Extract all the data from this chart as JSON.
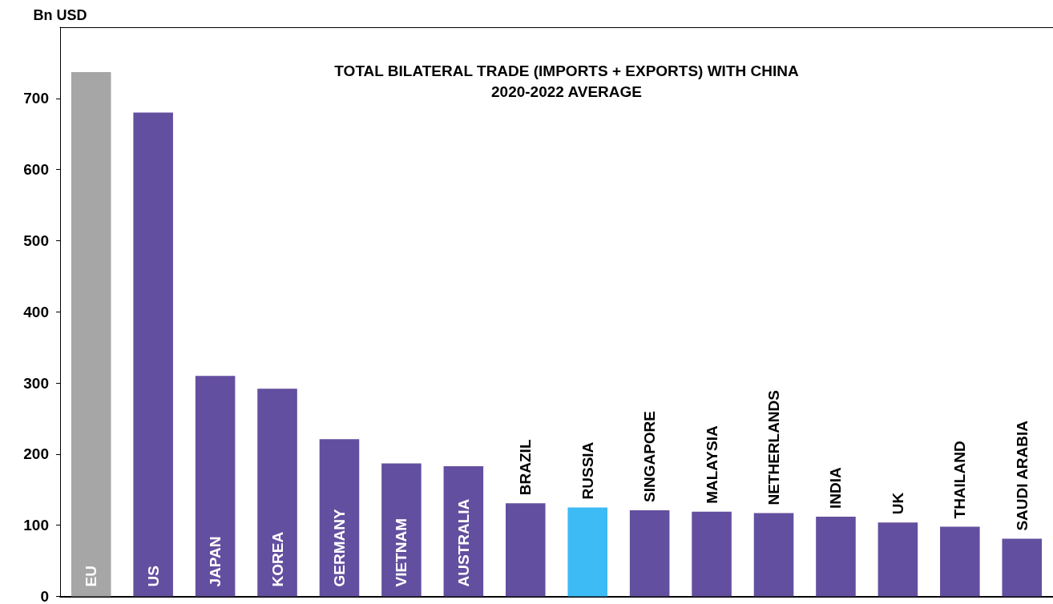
{
  "chart_data": {
    "type": "bar",
    "title": "TOTAL BILATERAL TRADE (IMPORTS + EXPORTS) WITH CHINA\n2020-2022 AVERAGE",
    "ylabel": "Bn USD",
    "categories": [
      "EU",
      "US",
      "JAPAN",
      "KOREA",
      "GERMANY",
      "VIETNAM",
      "AUSTRALIA",
      "BRAZIL",
      "RUSSIA",
      "SINGAPORE",
      "MALAYSIA",
      "NETHERLANDS",
      "INDIA",
      "UK",
      "THAILAND",
      "SAUDI ARABIA"
    ],
    "values": [
      737,
      680,
      310,
      292,
      221,
      187,
      183,
      131,
      125,
      121,
      119,
      117,
      112,
      104,
      98,
      81
    ],
    "colors": [
      "#a6a6a6",
      "#634f9f",
      "#634f9f",
      "#634f9f",
      "#634f9f",
      "#634f9f",
      "#634f9f",
      "#634f9f",
      "#3dbbf5",
      "#634f9f",
      "#634f9f",
      "#634f9f",
      "#634f9f",
      "#634f9f",
      "#634f9f",
      "#634f9f"
    ],
    "ylim": [
      0,
      800
    ],
    "yticks": [
      0,
      100,
      200,
      300,
      400,
      500,
      600,
      700
    ]
  }
}
